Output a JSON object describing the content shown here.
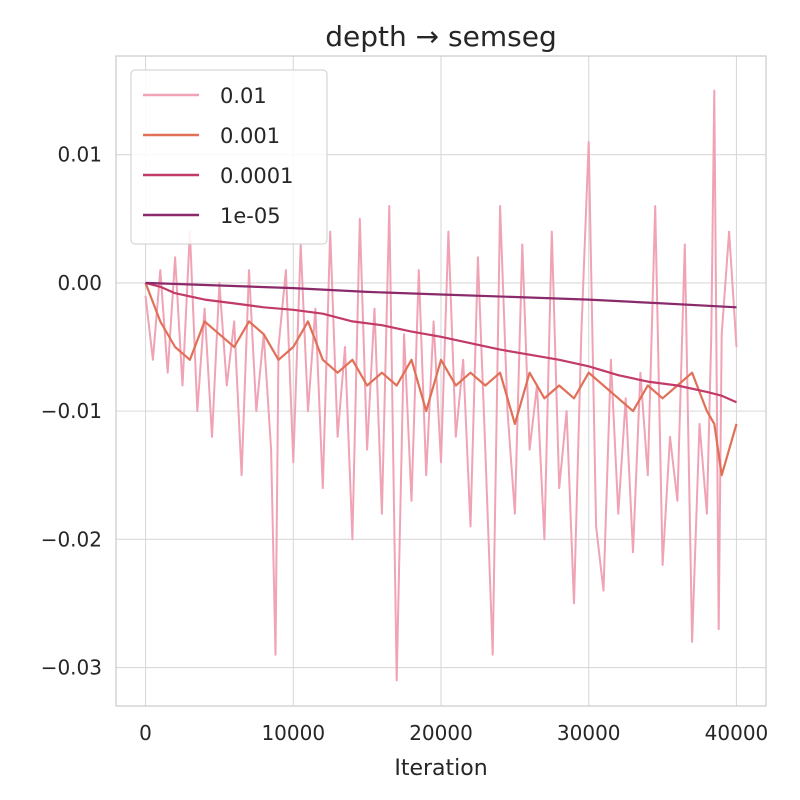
{
  "chart_data": {
    "type": "line",
    "title": "depth → semseg",
    "xlabel": "Iteration",
    "ylabel": "",
    "xlim": [
      -2000,
      42000
    ],
    "ylim": [
      -0.033,
      0.0177
    ],
    "xticks": [
      0,
      10000,
      20000,
      30000,
      40000
    ],
    "xtick_labels": [
      "0",
      "10000",
      "20000",
      "30000",
      "40000"
    ],
    "yticks": [
      -0.03,
      -0.02,
      -0.01,
      0.0,
      0.01
    ],
    "ytick_labels": [
      "−0.03",
      "−0.02",
      "−0.01",
      "0.00",
      "0.01"
    ],
    "grid": true,
    "legend_position": "top-left",
    "series": [
      {
        "name": "0.01",
        "color": "#f0a3b5",
        "x": [
          0,
          500,
          1000,
          1500,
          2000,
          2500,
          3000,
          3500,
          4000,
          4500,
          5000,
          5500,
          6000,
          6500,
          7000,
          7500,
          8000,
          8500,
          8800,
          9000,
          9500,
          10000,
          10500,
          11000,
          11500,
          12000,
          12500,
          13000,
          13500,
          14000,
          14500,
          15000,
          15500,
          16000,
          16500,
          17000,
          17500,
          18000,
          18500,
          19000,
          19500,
          20000,
          20500,
          21000,
          21500,
          22000,
          22500,
          23000,
          23500,
          24000,
          24500,
          25000,
          25500,
          26000,
          26500,
          27000,
          27500,
          28000,
          28500,
          29000,
          29500,
          30000,
          30500,
          31000,
          31500,
          32000,
          32500,
          33000,
          33500,
          34000,
          34500,
          35000,
          35500,
          36000,
          36500,
          37000,
          37500,
          38000,
          38300,
          38500,
          38800,
          39000,
          39500,
          40000
        ],
        "values": [
          -0.001,
          -0.006,
          0.001,
          -0.007,
          0.002,
          -0.008,
          0.004,
          -0.01,
          -0.002,
          -0.012,
          0.0,
          -0.008,
          -0.003,
          -0.015,
          0.001,
          -0.01,
          -0.004,
          -0.013,
          -0.029,
          -0.005,
          0.001,
          -0.014,
          0.003,
          -0.01,
          -0.002,
          -0.016,
          0.004,
          -0.012,
          -0.005,
          -0.02,
          0.005,
          -0.013,
          -0.002,
          -0.018,
          0.006,
          -0.031,
          -0.004,
          -0.017,
          0.001,
          -0.015,
          -0.003,
          -0.014,
          0.004,
          -0.012,
          -0.006,
          -0.019,
          0.002,
          -0.013,
          -0.029,
          0.006,
          -0.01,
          -0.018,
          0.003,
          -0.013,
          -0.008,
          -0.02,
          0.004,
          -0.016,
          -0.01,
          -0.025,
          -0.004,
          0.011,
          -0.019,
          -0.024,
          -0.006,
          -0.018,
          -0.009,
          -0.021,
          -0.007,
          -0.015,
          0.006,
          -0.022,
          -0.012,
          -0.017,
          0.003,
          -0.028,
          -0.011,
          -0.018,
          -0.004,
          0.015,
          -0.027,
          -0.004,
          0.004,
          -0.005
        ]
      },
      {
        "name": "0.001",
        "color": "#e07057",
        "x": [
          0,
          1000,
          2000,
          3000,
          4000,
          5000,
          6000,
          7000,
          8000,
          9000,
          10000,
          11000,
          12000,
          13000,
          14000,
          15000,
          16000,
          17000,
          18000,
          19000,
          20000,
          21000,
          22000,
          23000,
          24000,
          25000,
          26000,
          27000,
          28000,
          29000,
          30000,
          31000,
          32000,
          33000,
          34000,
          35000,
          36000,
          37000,
          38000,
          38500,
          39000,
          39500,
          40000
        ],
        "values": [
          0.0,
          -0.003,
          -0.005,
          -0.006,
          -0.003,
          -0.004,
          -0.005,
          -0.003,
          -0.004,
          -0.006,
          -0.005,
          -0.003,
          -0.006,
          -0.007,
          -0.006,
          -0.008,
          -0.007,
          -0.008,
          -0.006,
          -0.01,
          -0.006,
          -0.008,
          -0.007,
          -0.008,
          -0.007,
          -0.011,
          -0.007,
          -0.009,
          -0.008,
          -0.009,
          -0.007,
          -0.008,
          -0.009,
          -0.01,
          -0.008,
          -0.009,
          -0.008,
          -0.007,
          -0.01,
          -0.011,
          -0.015,
          -0.013,
          -0.011
        ]
      },
      {
        "name": "0.0001",
        "color": "#c23a68",
        "x": [
          0,
          1000,
          2000,
          4000,
          6000,
          8000,
          10000,
          12000,
          14000,
          16000,
          18000,
          20000,
          22000,
          24000,
          26000,
          28000,
          30000,
          32000,
          34000,
          36000,
          38000,
          39000,
          40000
        ],
        "values": [
          0.0,
          -0.0003,
          -0.0008,
          -0.0013,
          -0.0016,
          -0.0019,
          -0.0021,
          -0.0024,
          -0.003,
          -0.0033,
          -0.0038,
          -0.0042,
          -0.0047,
          -0.0052,
          -0.0056,
          -0.006,
          -0.0065,
          -0.0072,
          -0.0077,
          -0.008,
          -0.0085,
          -0.0088,
          -0.0093
        ]
      },
      {
        "name": "1e-05",
        "color": "#8a2a6a",
        "x": [
          0,
          5000,
          10000,
          15000,
          20000,
          25000,
          30000,
          35000,
          40000
        ],
        "values": [
          0.0,
          -0.0002,
          -0.0004,
          -0.0007,
          -0.0009,
          -0.0011,
          -0.0013,
          -0.0016,
          -0.0019
        ]
      }
    ]
  }
}
